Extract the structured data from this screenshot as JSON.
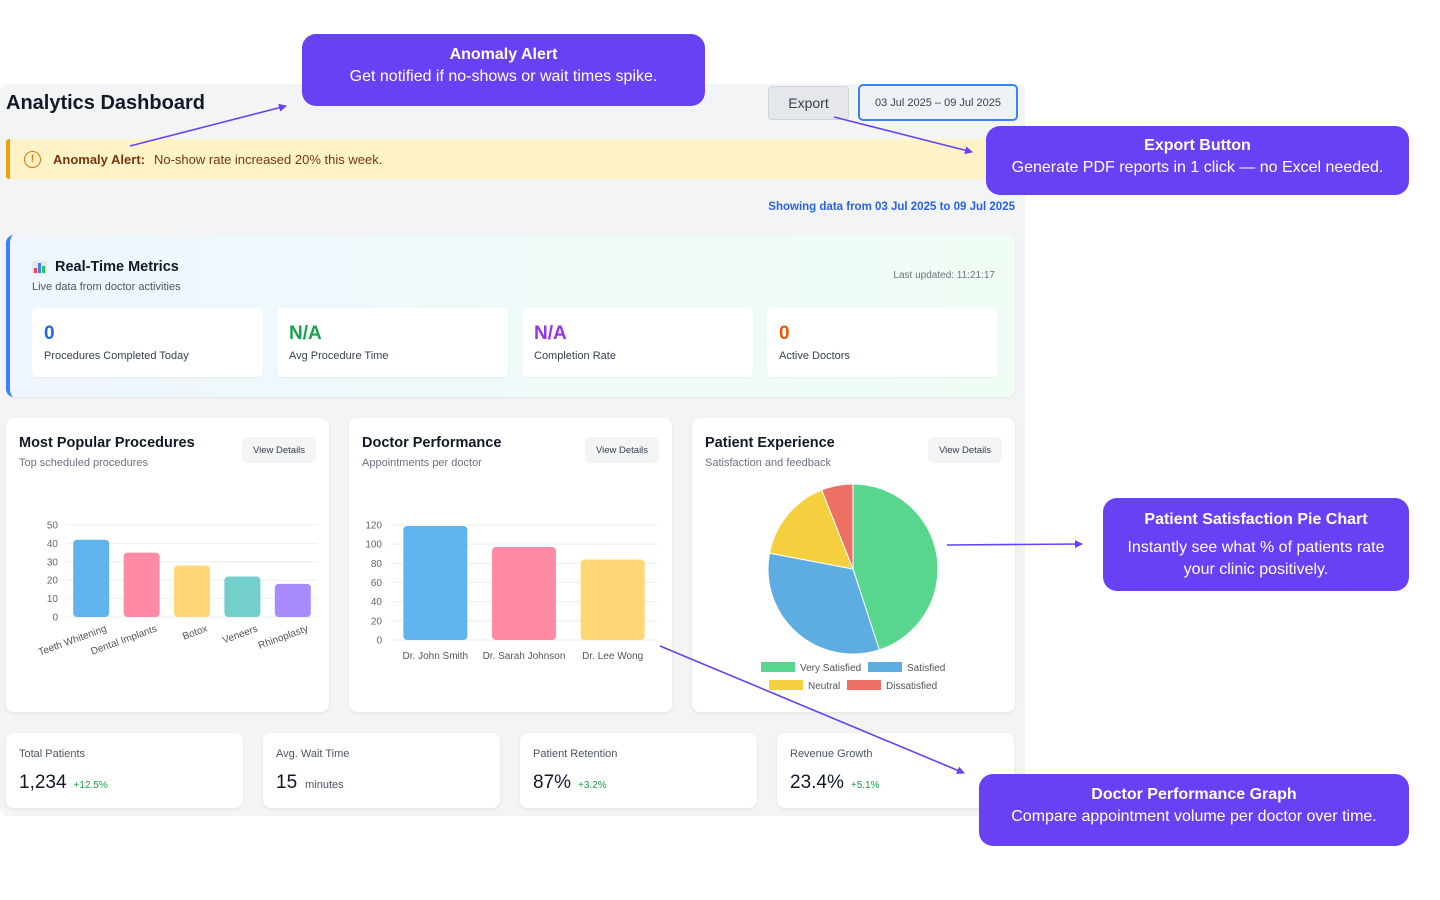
{
  "dashboard": {
    "title": "Analytics Dashboard",
    "export_label": "Export",
    "date_range": "03 Jul 2025 – 09 Jul 2025",
    "alert": {
      "label": "Anomaly Alert:",
      "message": "No-show rate increased 20% this week."
    },
    "showing_text": "Showing data from 03 Jul 2025 to 09 Jul 2025"
  },
  "realtime": {
    "title": "Real-Time Metrics",
    "subtitle": "Live data from doctor activities",
    "last_updated": "Last updated: 11:21:17",
    "metrics": [
      {
        "value": "0",
        "label": "Procedures Completed Today",
        "color": "#2563eb"
      },
      {
        "value": "N/A",
        "label": "Avg Procedure Time",
        "color": "#16a34a"
      },
      {
        "value": "N/A",
        "label": "Completion Rate",
        "color": "#9333ea"
      },
      {
        "value": "0",
        "label": "Active Doctors",
        "color": "#ea580c"
      }
    ]
  },
  "cards": [
    {
      "title": "Most Popular Procedures",
      "subtitle": "Top scheduled procedures",
      "button": "View Details"
    },
    {
      "title": "Doctor Performance",
      "subtitle": "Appointments per doctor",
      "button": "View Details"
    },
    {
      "title": "Patient Experience",
      "subtitle": "Satisfaction and feedback",
      "button": "View Details"
    }
  ],
  "chart_data": [
    {
      "type": "bar",
      "categories": [
        "Teeth Whitening",
        "Dental Implants",
        "Botox",
        "Veneers",
        "Rhinoplasty"
      ],
      "values": [
        42,
        35,
        28,
        22,
        18
      ],
      "ylim": [
        0,
        50
      ],
      "yticks": [
        "50",
        "40",
        "30",
        "20",
        "10",
        "0"
      ],
      "colors": [
        "#60b4ee",
        "#ff8aa5",
        "#ffd777",
        "#72cfcb",
        "#a78bfa"
      ]
    },
    {
      "type": "bar",
      "categories": [
        "Dr. John Smith",
        "Dr. Sarah Johnson",
        "Dr. Lee Wong"
      ],
      "values": [
        119,
        97,
        84
      ],
      "ylim": [
        0,
        120
      ],
      "yticks": [
        "120",
        "100",
        "80",
        "60",
        "40",
        "20",
        "0"
      ],
      "colors": [
        "#60b4ee",
        "#ff8aa5",
        "#ffd777"
      ]
    },
    {
      "type": "pie",
      "categories": [
        "Very Satisfied",
        "Satisfied",
        "Neutral",
        "Dissatisfied"
      ],
      "values": [
        45,
        33,
        16,
        6
      ],
      "colors": [
        "#58d68d",
        "#5dade2",
        "#f4d03f",
        "#ec7063"
      ]
    }
  ],
  "stats": [
    {
      "label": "Total Patients",
      "value": "1,234",
      "delta": "+12.5%",
      "unit": ""
    },
    {
      "label": "Avg. Wait Time",
      "value": "15",
      "delta": "",
      "unit": "minutes"
    },
    {
      "label": "Patient Retention",
      "value": "87%",
      "delta": "+3.2%",
      "unit": ""
    },
    {
      "label": "Revenue Growth",
      "value": "23.4%",
      "delta": "+5.1%",
      "unit": ""
    }
  ],
  "callouts": {
    "anomaly": {
      "title": "Anomaly Alert",
      "text": "Get notified if no-shows or wait times spike."
    },
    "export": {
      "title": "Export Button",
      "text": "Generate PDF reports in 1 click — no Excel needed."
    },
    "pie": {
      "title": "Patient Satisfaction Pie Chart",
      "text": "Instantly see what % of patients rate your clinic positively."
    },
    "doctor": {
      "title": "Doctor Performance Graph",
      "text": "Compare appointment volume per doctor over time."
    }
  },
  "accent_color": "#6841f5"
}
